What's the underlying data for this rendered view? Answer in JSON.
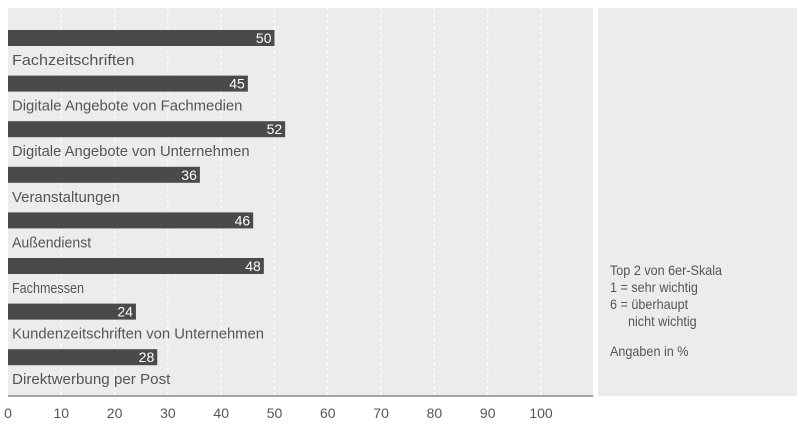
{
  "chart_data": {
    "type": "bar",
    "orientation": "horizontal",
    "categories": [
      "Fachzeitschriften",
      "Digitale Angebote von Fachmedien",
      "Digitale Angebote von Unternehmen",
      "Veranstaltungen",
      "Außendienst",
      "Fachmessen",
      "Kundenzeitschriften von Unternehmen",
      "Direktwerbung per Post"
    ],
    "values": [
      50,
      45,
      52,
      36,
      46,
      48,
      24,
      28
    ],
    "xlim": [
      0,
      110
    ],
    "xticks": [
      0,
      10,
      20,
      30,
      40,
      50,
      60,
      70,
      80,
      90,
      100
    ],
    "grid": true,
    "colors": {
      "bar": "#4a4a4a",
      "panel": "#ececec",
      "grid": "#ffffff",
      "text": "#555555",
      "value": "#ffffff"
    },
    "notes": {
      "line1": "Top 2 von 6er-Skala",
      "line2": "1 = sehr wichtig",
      "line3": "6 = überhaupt",
      "line4": "nicht wichtig",
      "line5": "Angaben in %"
    }
  }
}
